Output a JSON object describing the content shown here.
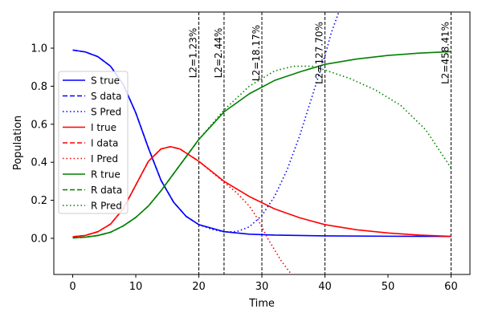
{
  "chart_data": {
    "type": "line",
    "title": "",
    "xlabel": "Time",
    "ylabel": "Population",
    "xlim": [
      -3,
      63
    ],
    "ylim": [
      -0.19,
      1.19
    ],
    "xticks": [
      0,
      10,
      20,
      30,
      40,
      50,
      60
    ],
    "xtick_labels": [
      "0",
      "10",
      "20",
      "30",
      "40",
      "50",
      "60"
    ],
    "yticks": [
      0.0,
      0.2,
      0.4,
      0.6,
      0.8,
      1.0
    ],
    "ytick_labels": [
      "0.0",
      "0.2",
      "0.4",
      "0.6",
      "0.8",
      "1.0"
    ],
    "grid": false,
    "legend_position": "center-left",
    "colors": {
      "S": "#0000ff",
      "I": "#ff0000",
      "R": "#008000",
      "vline": "#000000"
    },
    "series": [
      {
        "name": "S true",
        "key": "S",
        "style": "solid",
        "x": [
          0,
          2,
          4,
          6,
          8,
          10,
          12,
          14,
          16,
          18,
          20,
          24,
          28,
          32,
          40,
          50,
          60
        ],
        "values": [
          0.99,
          0.98,
          0.955,
          0.905,
          0.81,
          0.66,
          0.475,
          0.305,
          0.19,
          0.115,
          0.072,
          0.035,
          0.022,
          0.017,
          0.013,
          0.011,
          0.01
        ]
      },
      {
        "name": "S data",
        "key": "S",
        "style": "dashed",
        "x": [
          0,
          2,
          4,
          6,
          8,
          10,
          12,
          14,
          16,
          18,
          20
        ],
        "values": [
          0.99,
          0.98,
          0.955,
          0.905,
          0.81,
          0.66,
          0.475,
          0.305,
          0.19,
          0.115,
          0.072
        ]
      },
      {
        "name": "S Pred",
        "key": "S",
        "style": "dotted",
        "x": [
          20,
          22,
          24,
          26,
          28,
          30,
          32,
          34,
          36,
          38,
          40,
          41,
          42.2
        ],
        "values": [
          0.072,
          0.048,
          0.034,
          0.035,
          0.06,
          0.12,
          0.22,
          0.36,
          0.54,
          0.75,
          0.96,
          1.08,
          1.19
        ]
      },
      {
        "name": "I true",
        "key": "I",
        "style": "solid",
        "x": [
          0,
          2,
          4,
          6,
          8,
          10,
          12,
          14,
          15.5,
          17,
          20,
          24,
          28,
          32,
          36,
          40,
          45,
          50,
          55,
          60
        ],
        "values": [
          0.008,
          0.015,
          0.035,
          0.075,
          0.155,
          0.28,
          0.405,
          0.47,
          0.482,
          0.47,
          0.405,
          0.3,
          0.22,
          0.155,
          0.108,
          0.072,
          0.045,
          0.028,
          0.017,
          0.01
        ]
      },
      {
        "name": "I data",
        "key": "I",
        "style": "dashed",
        "x": [
          0,
          2,
          4,
          6,
          8,
          10,
          12,
          14,
          15.5,
          17,
          20
        ],
        "values": [
          0.008,
          0.015,
          0.035,
          0.075,
          0.155,
          0.28,
          0.405,
          0.47,
          0.482,
          0.47,
          0.405
        ]
      },
      {
        "name": "I Pred",
        "key": "I",
        "style": "dotted",
        "x": [
          20,
          22,
          24,
          26,
          28,
          29,
          30,
          31,
          32,
          33,
          34,
          34.7
        ],
        "values": [
          0.405,
          0.35,
          0.295,
          0.24,
          0.17,
          0.12,
          0.06,
          -0.005,
          -0.06,
          -0.115,
          -0.16,
          -0.19
        ]
      },
      {
        "name": "R true",
        "key": "R",
        "style": "solid",
        "x": [
          0,
          2,
          4,
          6,
          8,
          10,
          12,
          14,
          16,
          18,
          20,
          24,
          28,
          32,
          36,
          40,
          45,
          50,
          55,
          60
        ],
        "values": [
          0.002,
          0.006,
          0.015,
          0.032,
          0.065,
          0.11,
          0.17,
          0.25,
          0.34,
          0.43,
          0.52,
          0.665,
          0.76,
          0.83,
          0.875,
          0.915,
          0.943,
          0.962,
          0.974,
          0.982
        ]
      },
      {
        "name": "R data",
        "key": "R",
        "style": "dashed",
        "x": [
          0,
          2,
          4,
          6,
          8,
          10,
          12,
          14,
          16,
          18,
          20
        ],
        "values": [
          0.002,
          0.006,
          0.015,
          0.032,
          0.065,
          0.11,
          0.17,
          0.25,
          0.34,
          0.43,
          0.52
        ]
      },
      {
        "name": "R Pred",
        "key": "R",
        "style": "dotted",
        "x": [
          20,
          24,
          28,
          32,
          35,
          38,
          40,
          44,
          48,
          52,
          56,
          60
        ],
        "values": [
          0.52,
          0.675,
          0.8,
          0.88,
          0.905,
          0.905,
          0.885,
          0.84,
          0.78,
          0.7,
          0.57,
          0.37
        ]
      }
    ],
    "vlines": [
      {
        "x": 20,
        "label": "L2=1.23%"
      },
      {
        "x": 24,
        "label": "L2=2.44%"
      },
      {
        "x": 30,
        "label": "L2=18.17%"
      },
      {
        "x": 40,
        "label": "L2=127.70%"
      },
      {
        "x": 60,
        "label": "L2=458.41%"
      }
    ]
  }
}
